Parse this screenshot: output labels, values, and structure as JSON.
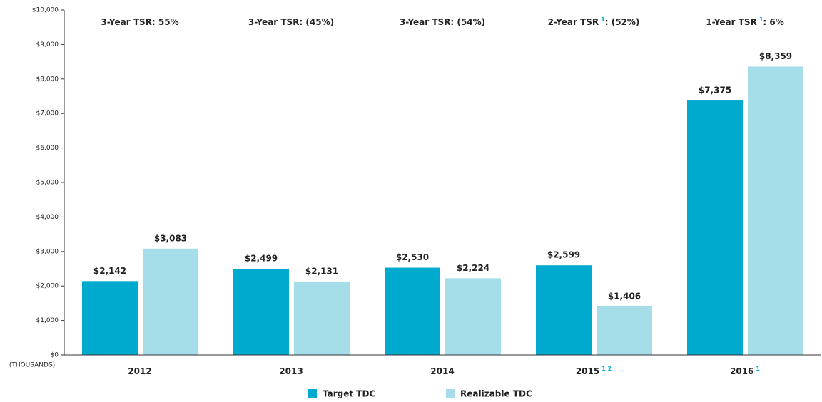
{
  "chart_data": {
    "type": "bar",
    "unit_label": "(THOUSANDS)",
    "categories": [
      "2012",
      "2013",
      "2014",
      "2015",
      "2016"
    ],
    "category_notes": [
      null,
      null,
      null,
      "1 2",
      "1"
    ],
    "annotations": [
      {
        "text": "3-Year TSR:  55%"
      },
      {
        "text": "3-Year TSR: (45%)"
      },
      {
        "text": "3-Year TSR: (54%)"
      },
      {
        "text": "2-Year TSR",
        "note": "1",
        "rest": ": (52%)"
      },
      {
        "text": "1-Year TSR",
        "note": "1",
        "rest": ": 6%"
      }
    ],
    "series": [
      {
        "name": "Target TDC",
        "color": "#00a9ce",
        "values": [
          2142,
          2499,
          2530,
          2599,
          7375
        ],
        "value_labels": [
          "$2,142",
          "$2,499",
          "$2,530",
          "$2,599",
          "$7,375"
        ]
      },
      {
        "name": "Realizable TDC",
        "color": "#a5dde9",
        "values": [
          3083,
          2131,
          2224,
          1406,
          8359
        ],
        "value_labels": [
          "$3,083",
          "$2,131",
          "$2,224",
          "$1,406",
          "$8,359"
        ]
      }
    ],
    "ylim": [
      0,
      10000
    ],
    "yticks": [
      {
        "value": 0,
        "label": "$0"
      },
      {
        "value": 1000,
        "label": "$1,000"
      },
      {
        "value": 2000,
        "label": "$2,000"
      },
      {
        "value": 3000,
        "label": "$3,000"
      },
      {
        "value": 4000,
        "label": "$4,000"
      },
      {
        "value": 5000,
        "label": "$5,000"
      },
      {
        "value": 6000,
        "label": "$6,000"
      },
      {
        "value": 7000,
        "label": "$7,000"
      },
      {
        "value": 8000,
        "label": "$8,000"
      },
      {
        "value": 9000,
        "label": "$9,000"
      },
      {
        "value": 10000,
        "label": "$10,000"
      }
    ],
    "grid": false,
    "legend": "bottom"
  }
}
